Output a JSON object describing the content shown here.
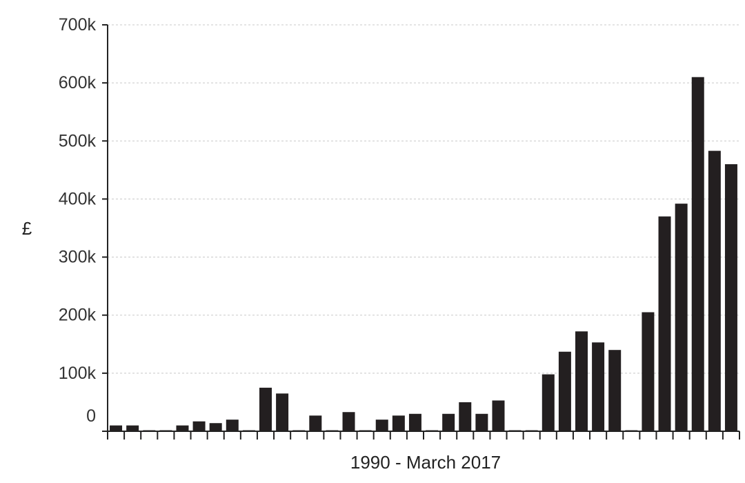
{
  "chart_data": {
    "type": "bar",
    "xlabel": "1990 - March 2017",
    "ylabel": "£",
    "ylim": [
      0,
      700000
    ],
    "y_ticks": [
      0,
      100000,
      200000,
      300000,
      400000,
      500000,
      600000,
      700000
    ],
    "y_tick_labels": [
      "0",
      "100k",
      "200k",
      "300k",
      "400k",
      "500k",
      "600k",
      "700k"
    ],
    "grid": true,
    "bar_color": "#231f20",
    "values": [
      10000,
      10000,
      0,
      0,
      10000,
      17000,
      14000,
      20000,
      0,
      75000,
      65000,
      0,
      27000,
      0,
      33000,
      0,
      20000,
      27000,
      30000,
      0,
      30000,
      50000,
      30000,
      53000,
      0,
      0,
      98000,
      137000,
      172000,
      153000,
      140000,
      0,
      205000,
      370000,
      392000,
      610000,
      483000,
      460000
    ]
  }
}
